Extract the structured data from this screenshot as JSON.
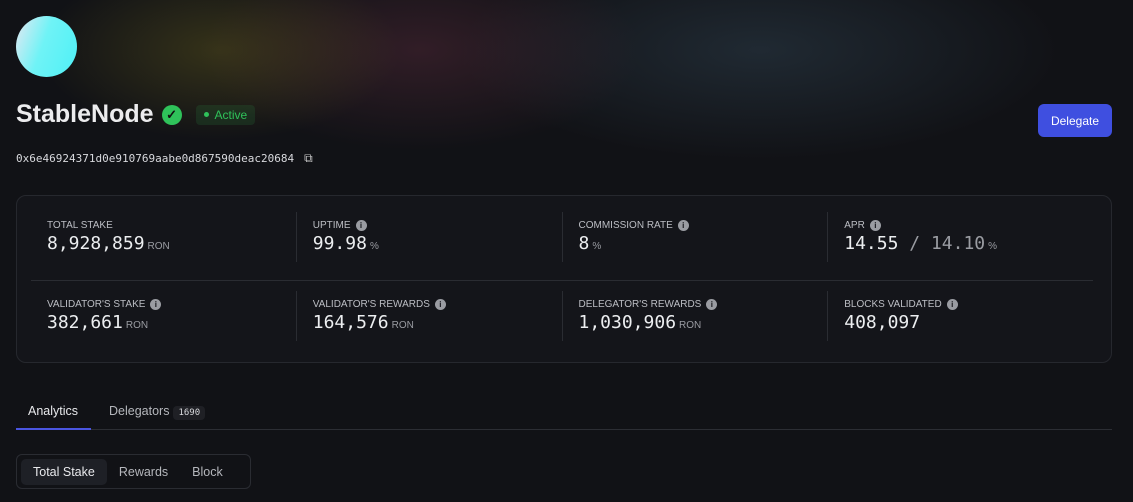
{
  "validator": {
    "name": "StableNode",
    "status": "Active",
    "address": "0x6e46924371d0e910769aabe0d867590deac20684"
  },
  "actions": {
    "delegate": "Delegate"
  },
  "stats": [
    {
      "label": "TOTAL STAKE",
      "value": "8,928,859",
      "unit": "RON",
      "info": false
    },
    {
      "label": "UPTIME",
      "value": "99.98",
      "unit": "%",
      "info": true
    },
    {
      "label": "COMMISSION RATE",
      "value": "8",
      "unit": "%",
      "info": true
    },
    {
      "label": "APR",
      "value": "14.55",
      "value2": "14.10",
      "unit": "%",
      "info": true
    },
    {
      "label": "VALIDATOR'S STAKE",
      "value": "382,661",
      "unit": "RON",
      "info": true
    },
    {
      "label": "VALIDATOR'S REWARDS",
      "value": "164,576",
      "unit": "RON",
      "info": true
    },
    {
      "label": "DELEGATOR'S REWARDS",
      "value": "1,030,906",
      "unit": "RON",
      "info": true
    },
    {
      "label": "BLOCKS VALIDATED",
      "value": "408,097",
      "unit": "",
      "info": true
    }
  ],
  "tabs": [
    {
      "label": "Analytics",
      "active": true
    },
    {
      "label": "Delegators",
      "count": "1690"
    }
  ],
  "segments": [
    {
      "label": "Total Stake",
      "active": true
    },
    {
      "label": "Rewards"
    },
    {
      "label": "Block"
    }
  ],
  "colors": {
    "accent": "#3f4fe0",
    "success": "#2fc25a"
  }
}
